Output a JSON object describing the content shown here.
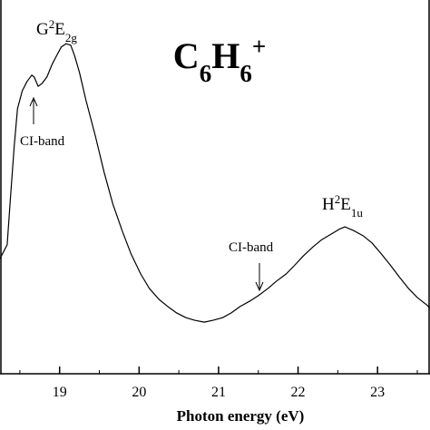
{
  "chart_data": {
    "type": "line",
    "title_parts": [
      {
        "text": "C"
      },
      {
        "text": "6",
        "script": "sub"
      },
      {
        "text": "H"
      },
      {
        "text": "6",
        "script": "sub"
      },
      {
        "text": "+",
        "script": "sup"
      }
    ],
    "x_label": "Photon energy (eV)",
    "x": [
      18.25,
      18.34,
      18.38,
      18.43,
      18.47,
      18.53,
      18.59,
      18.65,
      18.68,
      18.73,
      18.78,
      18.84,
      18.91,
      18.97,
      19.02,
      19.08,
      19.14,
      19.19,
      19.25,
      19.33,
      19.45,
      19.56,
      19.67,
      19.79,
      19.9,
      20.02,
      20.13,
      20.25,
      20.36,
      20.47,
      20.59,
      20.7,
      20.82,
      20.93,
      21.05,
      21.16,
      21.27,
      21.39,
      21.5,
      21.62,
      21.73,
      21.85,
      21.96,
      22.07,
      22.19,
      22.3,
      22.42,
      22.53,
      22.59,
      22.7,
      22.82,
      22.93,
      23.05,
      23.16,
      23.27,
      23.39,
      23.5,
      23.62,
      23.66
    ],
    "values": [
      0.308,
      0.345,
      0.466,
      0.612,
      0.709,
      0.757,
      0.782,
      0.799,
      0.794,
      0.769,
      0.777,
      0.794,
      0.83,
      0.854,
      0.874,
      0.883,
      0.879,
      0.85,
      0.806,
      0.733,
      0.636,
      0.539,
      0.454,
      0.381,
      0.32,
      0.267,
      0.228,
      0.199,
      0.18,
      0.163,
      0.15,
      0.143,
      0.138,
      0.143,
      0.15,
      0.163,
      0.18,
      0.194,
      0.209,
      0.228,
      0.248,
      0.267,
      0.291,
      0.316,
      0.34,
      0.359,
      0.374,
      0.388,
      0.393,
      0.383,
      0.369,
      0.35,
      0.32,
      0.291,
      0.26,
      0.228,
      0.204,
      0.184,
      0.175
    ],
    "color": "#000000",
    "xlim": [
      18.25,
      23.66
    ],
    "ylim": [
      0,
      1
    ],
    "xticks": [
      19,
      20,
      21,
      22,
      23
    ],
    "xminor_ticks": [
      18.5,
      19.5,
      20.5,
      21.5,
      22.5,
      23.5
    ],
    "annotations": [
      {
        "parts": [
          {
            "text": "G"
          },
          {
            "text": "2",
            "script": "sup"
          },
          {
            "text": "E"
          },
          {
            "text": "2g",
            "script": "sub"
          }
        ]
      },
      {
        "parts": [
          {
            "text": "CI-band"
          }
        ]
      },
      {
        "parts": [
          {
            "text": "CI-band"
          }
        ]
      },
      {
        "parts": [
          {
            "text": "H"
          },
          {
            "text": "2",
            "script": "sup"
          },
          {
            "text": "E"
          },
          {
            "text": "1u",
            "script": "sub"
          }
        ]
      }
    ]
  }
}
